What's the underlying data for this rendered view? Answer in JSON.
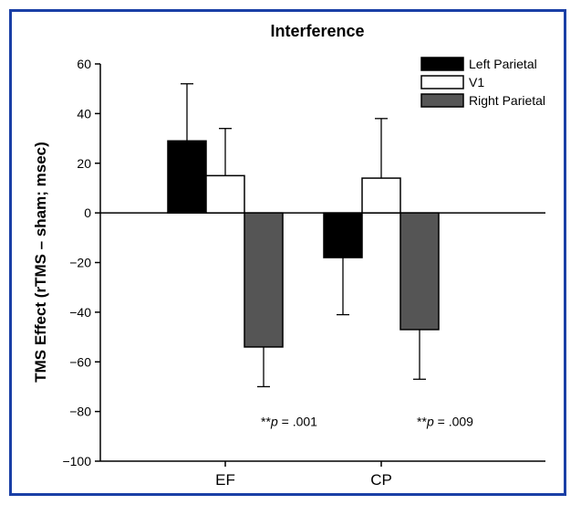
{
  "chart_data": {
    "type": "bar",
    "title": "Interference",
    "ylabel": "TMS Effect (rTMS – sham; msec)",
    "xlabel": "",
    "ylim": [
      -100,
      60
    ],
    "yticks": [
      60,
      40,
      20,
      0,
      -20,
      -40,
      -60,
      -80,
      -100
    ],
    "ytick_labels": [
      "60",
      "40",
      "20",
      "0",
      "−20",
      "−40",
      "−60",
      "−80",
      "−100"
    ],
    "categories": [
      "EF",
      "CP"
    ],
    "series": [
      {
        "name": "Left Parietal",
        "color": "#000000",
        "values": [
          29,
          -18
        ],
        "errors": [
          23,
          23
        ]
      },
      {
        "name": "V1",
        "color": "#ffffff",
        "values": [
          15,
          14
        ],
        "errors": [
          19,
          24
        ]
      },
      {
        "name": "Right Parietal",
        "color": "#555555",
        "values": [
          -54,
          -47
        ],
        "errors": [
          16,
          20
        ]
      }
    ],
    "legend_position": "top-right",
    "annotations": [
      {
        "category": "EF",
        "prefix": "**",
        "italic": "p",
        "suffix": " = .001",
        "y": -84
      },
      {
        "category": "CP",
        "prefix": "**",
        "italic": "p",
        "suffix": " = .009",
        "y": -84
      }
    ],
    "grid": false
  }
}
